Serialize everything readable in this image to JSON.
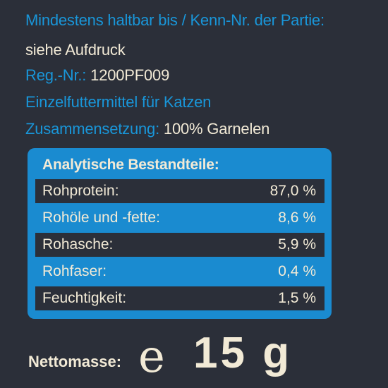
{
  "header": {
    "best_before_label": "Mindestens haltbar bis / Kenn-Nr. der Partie:",
    "best_before_value": "siehe Aufdruck",
    "reg_label": "Reg.-Nr.:",
    "reg_value": "1200PF009",
    "product_type": "Einzelfuttermittel für Katzen",
    "composition_label": "Zusammensetzung:",
    "composition_value": "100% Garnelen"
  },
  "analysis": {
    "title": "Analytische Bestandteile:",
    "rows": [
      {
        "name": "Rohprotein:",
        "value": "87,0 %"
      },
      {
        "name": "Rohöle und -fette:",
        "value": "8,6 %"
      },
      {
        "name": "Rohasche:",
        "value": "5,9 %"
      },
      {
        "name": "Rohfaser:",
        "value": "0,4 %"
      },
      {
        "name": "Feuchtigkeit:",
        "value": "1,5 %"
      }
    ]
  },
  "net": {
    "label": "Nettomasse:",
    "estimate_symbol": "e",
    "value": "15 g"
  },
  "colors": {
    "background": "#2b2f39",
    "accent_blue": "#1996d9",
    "text_cream": "#f2ead6"
  }
}
